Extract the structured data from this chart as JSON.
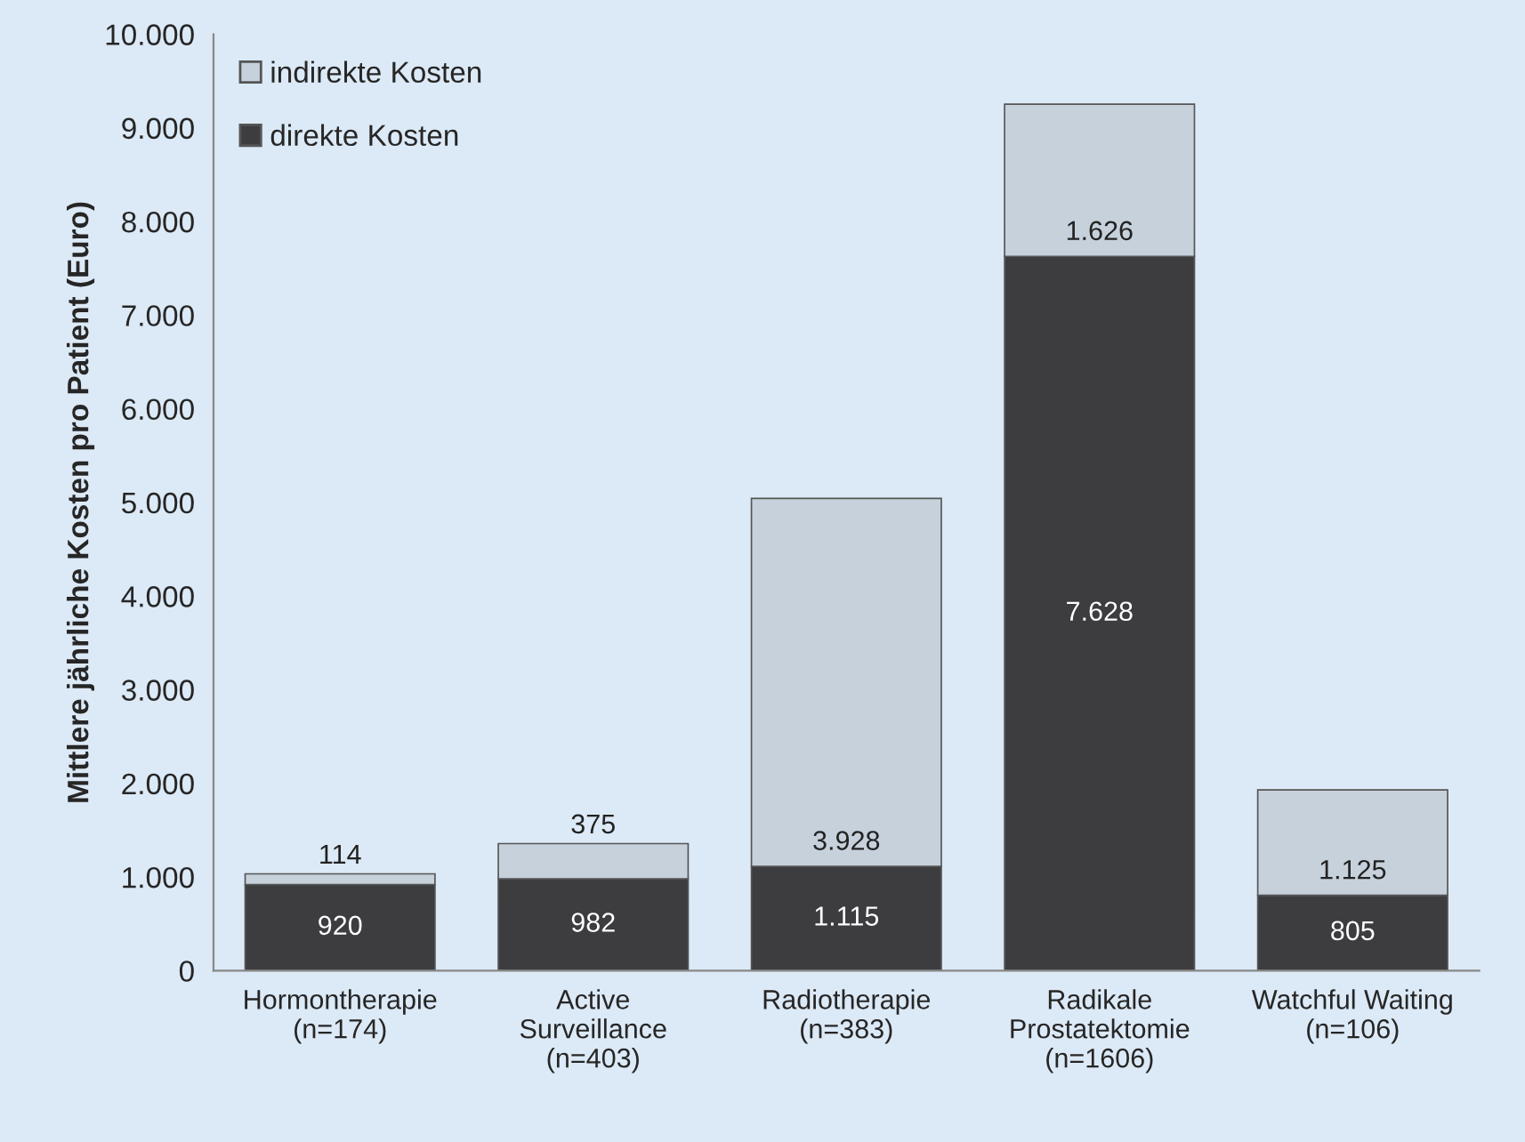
{
  "chart_data": {
    "type": "bar",
    "stacked": true,
    "ylabel": "Mittlere jährliche Kosten pro Patient (Euro)",
    "categories": [
      "Hormontherapie\n(n=174)",
      "Active\nSurveillance\n(n=403)",
      "Radiotherapie\n(n=383)",
      "Radikale\nProstatektomie\n(n=1606)",
      "Watchful Waiting\n(n=106)"
    ],
    "series": [
      {
        "name": "direkte Kosten",
        "color": "#3d3d40",
        "values": [
          920,
          982,
          1115,
          7628,
          805
        ],
        "value_labels": [
          "920",
          "982",
          "1.115",
          "7.628",
          "805"
        ]
      },
      {
        "name": "indirekte Kosten",
        "color": "#c6d1dc",
        "values": [
          114,
          375,
          3928,
          1626,
          1125
        ],
        "value_labels": [
          "114",
          "375",
          "3.928",
          "1.626",
          "1.125"
        ]
      }
    ],
    "ylim": [
      0,
      10000
    ],
    "yticks": [
      {
        "value": 0,
        "label": "0"
      },
      {
        "value": 1000,
        "label": "1.000"
      },
      {
        "value": 2000,
        "label": "2.000"
      },
      {
        "value": 3000,
        "label": "3.000"
      },
      {
        "value": 4000,
        "label": "4.000"
      },
      {
        "value": 5000,
        "label": "5.000"
      },
      {
        "value": 6000,
        "label": "6.000"
      },
      {
        "value": 7000,
        "label": "7.000"
      },
      {
        "value": 8000,
        "label": "8.000"
      },
      {
        "value": 9000,
        "label": "9.000"
      },
      {
        "value": 10000,
        "label": "10.000"
      }
    ],
    "grid": false,
    "legend": "top left"
  }
}
